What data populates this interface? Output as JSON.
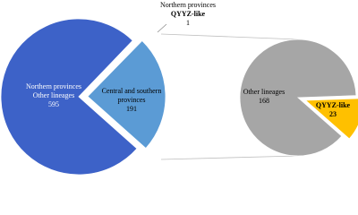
{
  "chart_data": {
    "type": "pie-of-pie",
    "main": {
      "slices": [
        {
          "label": [
            "Northern provinces",
            "Other lineages"
          ],
          "value": 595,
          "color": "#3d62c8"
        },
        {
          "label": [
            "Northern provinces",
            "QYYZ-like"
          ],
          "value": 1,
          "color": "#7d9fe0",
          "bold_lines": [
            1
          ]
        },
        {
          "label": [
            "Central and southern",
            "provinces"
          ],
          "value": 191,
          "color": "#5b9bd5"
        }
      ],
      "detail_slice": 2
    },
    "secondary": {
      "slices": [
        {
          "label": [
            "Other lineages"
          ],
          "value": 168,
          "color": "#a6a6a6"
        },
        {
          "label": [
            "QYYZ-like"
          ],
          "value": 23,
          "color": "#ffc000",
          "bold_lines": [
            0
          ],
          "bold_value": true
        }
      ],
      "exploded_slice": 1
    }
  }
}
